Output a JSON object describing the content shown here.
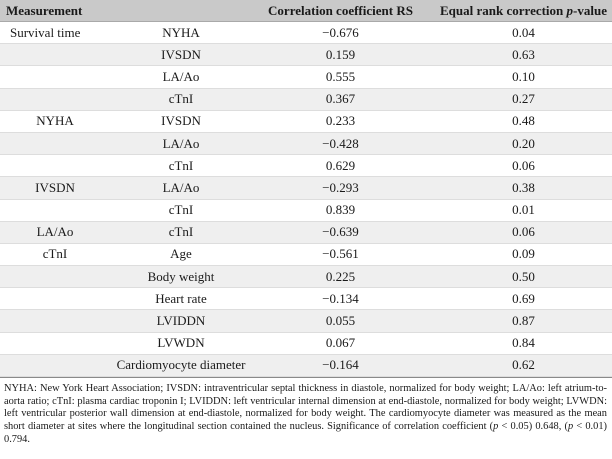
{
  "table": {
    "headers": {
      "measurement": "Measurement",
      "correlation": "Correlation coefficient RS",
      "pvalue_prefix": "Equal rank correction ",
      "pvalue_italic": "p",
      "pvalue_suffix": "-value"
    },
    "rows": [
      {
        "group": "Survival time",
        "var": "NYHA",
        "rs": "−0.676",
        "p": "0.04"
      },
      {
        "group": "",
        "var": "IVSDN",
        "rs": "0.159",
        "p": "0.63"
      },
      {
        "group": "",
        "var": "LA/Ao",
        "rs": "0.555",
        "p": "0.10"
      },
      {
        "group": "",
        "var": "cTnI",
        "rs": "0.367",
        "p": "0.27"
      },
      {
        "group": "NYHA",
        "var": "IVSDN",
        "rs": "0.233",
        "p": "0.48"
      },
      {
        "group": "",
        "var": "LA/Ao",
        "rs": "−0.428",
        "p": "0.20"
      },
      {
        "group": "",
        "var": "cTnI",
        "rs": "0.629",
        "p": "0.06"
      },
      {
        "group": "IVSDN",
        "var": "LA/Ao",
        "rs": "−0.293",
        "p": "0.38"
      },
      {
        "group": "",
        "var": "cTnI",
        "rs": "0.839",
        "p": "0.01"
      },
      {
        "group": "LA/Ao",
        "var": "cTnI",
        "rs": "−0.639",
        "p": "0.06"
      },
      {
        "group": "cTnI",
        "var": "Age",
        "rs": "−0.561",
        "p": "0.09"
      },
      {
        "group": "",
        "var": "Body weight",
        "rs": "0.225",
        "p": "0.50"
      },
      {
        "group": "",
        "var": "Heart rate",
        "rs": "−0.134",
        "p": "0.69"
      },
      {
        "group": "",
        "var": "LVIDDN",
        "rs": "0.055",
        "p": "0.87"
      },
      {
        "group": "",
        "var": "LVWDN",
        "rs": "0.067",
        "p": "0.84"
      },
      {
        "group": "",
        "var": "Cardiomyocyte diameter",
        "rs": "−0.164",
        "p": "0.62"
      }
    ]
  },
  "footnote": {
    "main": "NYHA: New York Heart Association; IVSDN: intraventricular septal thickness in diastole, normalized for body weight; LA/Ao: left atrium-to-aorta ratio; cTnI: plasma cardiac troponin I; LVIDDN: left ventricular internal dimension at end-diastole, normalized for body weight; LVWDN: left ventricular posterior wall dimension at end-diastole, normalized for body weight. The cardiomyocyte diameter was measured as the mean short diameter at sites where the longitudinal section contained the nucleus. Significance of correlation coefficient (",
    "p1": "p",
    "mid1": " < 0.05) 0.648, (",
    "p2": "p",
    "mid2": " < 0.01) 0.794."
  }
}
